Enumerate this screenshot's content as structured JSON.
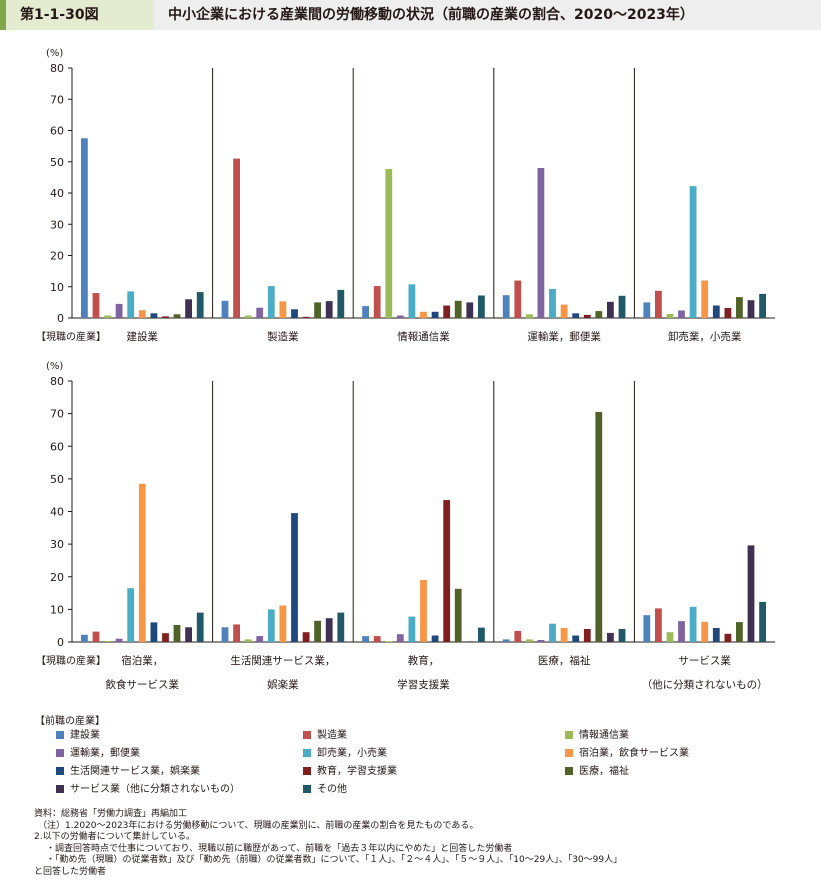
{
  "header": {
    "figure_number": "第1-1-30図",
    "title": "中小企業における産業間の労働移動の状況（前職の産業の割合、2020～2023年）"
  },
  "chart_data": {
    "type": "bar",
    "unit_label": "(%)",
    "ylim": [
      0,
      80
    ],
    "yticks": [
      "0",
      "10",
      "20",
      "30",
      "40",
      "50",
      "60",
      "70",
      "80"
    ],
    "row_label": "【現職の産業】",
    "legend_title": "【前職の産業】",
    "series": [
      {
        "name": "建設業",
        "color": "#4f81bd"
      },
      {
        "name": "製造業",
        "color": "#c0504d"
      },
      {
        "name": "情報通信業",
        "color": "#9bbb59"
      },
      {
        "name": "運輸業，郵便業",
        "color": "#8064a2"
      },
      {
        "name": "卸売業，小売業",
        "color": "#4bacc6"
      },
      {
        "name": "宿泊業，飲食サービス業",
        "color": "#f79646"
      },
      {
        "name": "生活関連サービス業，娯楽業",
        "color": "#1f497d"
      },
      {
        "name": "教育，学習支援業",
        "color": "#7f1f1f"
      },
      {
        "name": "医療，福祉",
        "color": "#4f6228"
      },
      {
        "name": "サービス業（他に分類されないもの）",
        "color": "#3f3151"
      },
      {
        "name": "その他",
        "color": "#215968"
      }
    ],
    "panels": [
      {
        "label": [
          "建設業"
        ],
        "values": [
          57.5,
          8.0,
          0.8,
          4.5,
          8.5,
          2.5,
          1.5,
          0.5,
          1.2,
          6.0,
          8.3
        ]
      },
      {
        "label": [
          "製造業"
        ],
        "values": [
          5.5,
          51.0,
          0.8,
          3.3,
          10.2,
          5.3,
          2.8,
          0.4,
          5.0,
          5.4,
          9.0
        ]
      },
      {
        "label": [
          "情報通信業"
        ],
        "values": [
          3.8,
          10.2,
          47.7,
          0.8,
          10.8,
          2.0,
          2.0,
          4.0,
          5.5,
          5.0,
          7.2
        ]
      },
      {
        "label": [
          "運輸業，郵便業"
        ],
        "values": [
          7.3,
          12.0,
          1.2,
          48.0,
          9.3,
          4.3,
          1.5,
          1.0,
          2.2,
          5.2,
          7.1
        ]
      },
      {
        "label": [
          "卸売業，小売業"
        ],
        "values": [
          5.0,
          8.7,
          1.3,
          2.4,
          42.2,
          12.0,
          4.0,
          3.2,
          6.7,
          5.7,
          7.7
        ]
      },
      {
        "label": [
          "宿泊業，",
          "飲食サービス業"
        ],
        "values": [
          2.2,
          3.2,
          0.3,
          1.0,
          16.5,
          48.5,
          6.0,
          2.7,
          5.2,
          4.5,
          9.0
        ]
      },
      {
        "label": [
          "生活関連サービス業，",
          "娯楽業"
        ],
        "values": [
          4.5,
          5.4,
          0.8,
          1.8,
          10.0,
          11.2,
          39.5,
          3.0,
          6.5,
          7.3,
          9.0
        ]
      },
      {
        "label": [
          "教育，",
          "学習支援業"
        ],
        "values": [
          1.8,
          1.8,
          0.2,
          2.4,
          7.8,
          19.0,
          2.0,
          43.5,
          16.3,
          0.2,
          4.4
        ]
      },
      {
        "label": [
          "医療，福祉"
        ],
        "values": [
          0.8,
          3.4,
          0.8,
          0.6,
          5.6,
          4.3,
          2.0,
          4.0,
          70.5,
          2.8,
          4.0
        ]
      },
      {
        "label": [
          "サービス業",
          "（他に分類されないもの）"
        ],
        "values": [
          8.2,
          10.3,
          3.0,
          6.4,
          10.8,
          6.2,
          4.3,
          2.5,
          6.1,
          29.6,
          12.3
        ]
      }
    ]
  },
  "notes": [
    "資料：総務省「労働力調査」再編加工",
    "（注）1.2020～2023年における労働移動について、現職の産業別に、前職の産業の割合を見たものである。",
    "2.以下の労働者について集計している。",
    "・調査回答時点で仕事についており、現職以前に職歴があって、前職を「過去３年以内にやめた」と回答した労働者",
    "・「勤め先（現職）の従業者数」及び「勤め先（前職）の従業者数」について、「１人」、「２～４人」、「５～９人」、「10～29人」、「30～99人」",
    "と回答した労働者"
  ]
}
